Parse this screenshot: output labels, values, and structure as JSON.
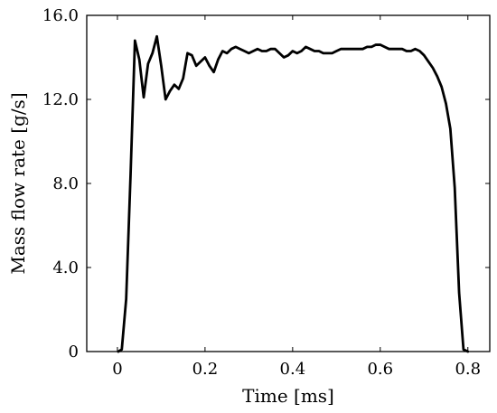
{
  "chart_data": {
    "type": "line",
    "xlabel": "Time [ms]",
    "ylabel": "Mass flow rate [g/s]",
    "xlim": [
      -0.07,
      0.85
    ],
    "ylim": [
      0,
      16
    ],
    "grid": false,
    "x_ticks": [
      0,
      0.2,
      0.4,
      0.6,
      0.8
    ],
    "x_tick_labels": [
      "0",
      "0.2",
      "0.4",
      "0.6",
      "0.8"
    ],
    "y_ticks": [
      0,
      4,
      8,
      12,
      16
    ],
    "y_tick_labels": [
      "0",
      "4.0",
      "8.0",
      "12.0",
      "16.0"
    ],
    "line_color": "#000000",
    "series": [
      {
        "x": [
          0.002,
          0.01,
          0.02,
          0.03,
          0.04,
          0.05,
          0.06,
          0.07,
          0.08,
          0.09,
          0.1,
          0.11,
          0.12,
          0.13,
          0.14,
          0.15,
          0.16,
          0.17,
          0.18,
          0.19,
          0.2,
          0.21,
          0.22,
          0.23,
          0.24,
          0.25,
          0.26,
          0.27,
          0.28,
          0.29,
          0.3,
          0.31,
          0.32,
          0.33,
          0.34,
          0.35,
          0.36,
          0.37,
          0.38,
          0.39,
          0.4,
          0.41,
          0.42,
          0.43,
          0.44,
          0.45,
          0.46,
          0.47,
          0.48,
          0.49,
          0.5,
          0.51,
          0.52,
          0.53,
          0.54,
          0.55,
          0.56,
          0.57,
          0.58,
          0.59,
          0.6,
          0.61,
          0.62,
          0.63,
          0.64,
          0.65,
          0.66,
          0.67,
          0.68,
          0.69,
          0.7,
          0.71,
          0.72,
          0.73,
          0.74,
          0.75,
          0.76,
          0.77,
          0.78,
          0.79,
          0.8
        ],
        "y": [
          0,
          0.1,
          2.5,
          8.4,
          14.8,
          13.9,
          12.1,
          13.7,
          14.2,
          15.0,
          13.6,
          12.0,
          12.4,
          12.7,
          12.5,
          13.0,
          14.2,
          14.1,
          13.6,
          13.8,
          14.0,
          13.6,
          13.3,
          13.9,
          14.3,
          14.2,
          14.4,
          14.5,
          14.4,
          14.3,
          14.2,
          14.3,
          14.4,
          14.3,
          14.3,
          14.4,
          14.4,
          14.2,
          14.0,
          14.1,
          14.3,
          14.2,
          14.3,
          14.5,
          14.4,
          14.3,
          14.3,
          14.2,
          14.2,
          14.2,
          14.3,
          14.4,
          14.4,
          14.4,
          14.4,
          14.4,
          14.4,
          14.5,
          14.5,
          14.6,
          14.6,
          14.5,
          14.4,
          14.4,
          14.4,
          14.4,
          14.3,
          14.3,
          14.4,
          14.3,
          14.1,
          13.8,
          13.5,
          13.1,
          12.6,
          11.8,
          10.6,
          7.8,
          2.8,
          0.1,
          0
        ]
      }
    ]
  }
}
